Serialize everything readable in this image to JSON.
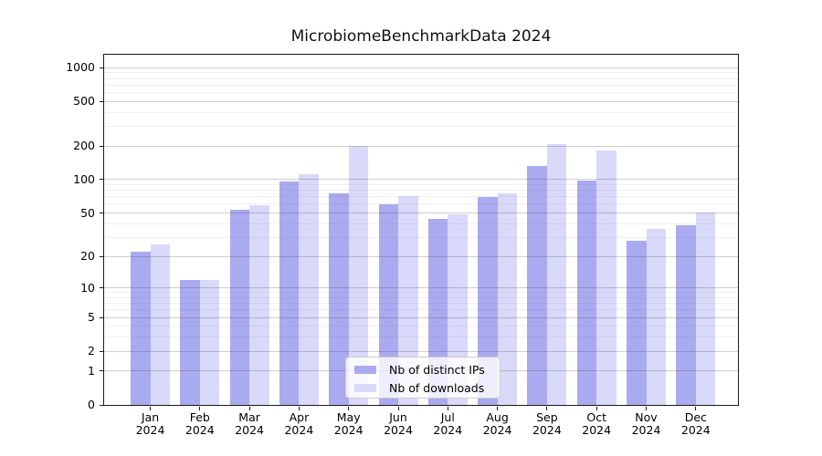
{
  "title": "MicrobiomeBenchmarkData 2024",
  "chart_data": {
    "type": "bar",
    "title": "MicrobiomeBenchmarkData 2024",
    "categories": [
      "Jan",
      "Feb",
      "Mar",
      "Apr",
      "May",
      "Jun",
      "Jul",
      "Aug",
      "Sep",
      "Oct",
      "Nov",
      "Dec"
    ],
    "category_year": "2024",
    "series": [
      {
        "name": "Nb of distinct IPs",
        "color": "#aaaaf0",
        "values": [
          22,
          12,
          54,
          97,
          76,
          60,
          44,
          70,
          132,
          98,
          28,
          39
        ]
      },
      {
        "name": "Nb of downloads",
        "color": "#d9d9f9",
        "values": [
          26,
          12,
          59,
          111,
          200,
          71,
          49,
          75,
          207,
          183,
          36,
          51
        ]
      }
    ],
    "yscale": "log10(v+1)",
    "yticks": [
      0,
      1,
      2,
      5,
      10,
      20,
      50,
      100,
      200,
      500,
      1000
    ],
    "minor_ticks": [
      3,
      4,
      6,
      7,
      8,
      9,
      30,
      40,
      60,
      70,
      80,
      90,
      300,
      400,
      600,
      700,
      800,
      900
    ],
    "ylim": [
      0,
      1305
    ],
    "grid": true,
    "legend_position": "lower center"
  }
}
